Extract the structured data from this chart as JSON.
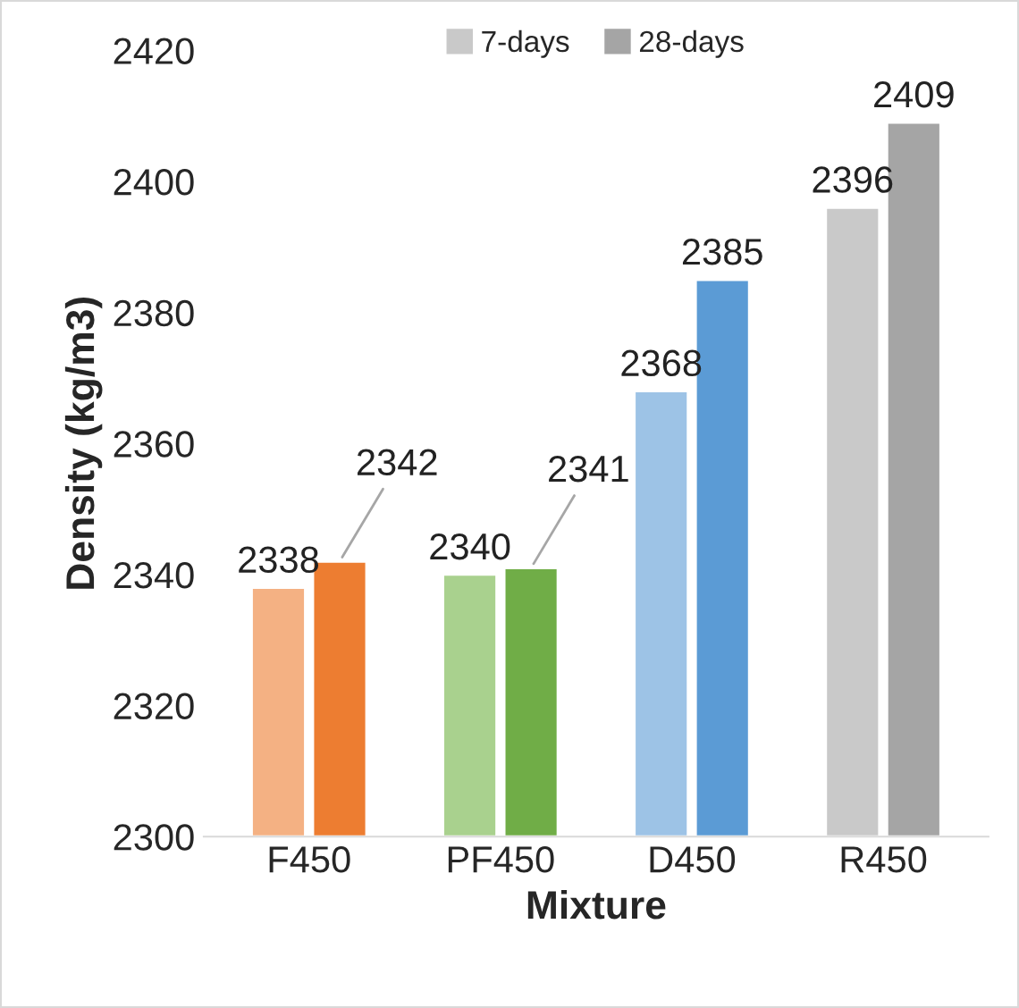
{
  "chart_data": {
    "type": "bar",
    "xlabel": "Mixture",
    "ylabel": "Density (kg/m3)",
    "categories": [
      "F450",
      "PF450",
      "D450",
      "R450"
    ],
    "series": [
      {
        "name": "7-days",
        "color": "#c9c9c9",
        "colors": [
          "#f4b183",
          "#a9d18e",
          "#9dc3e6",
          "#c9c9c9"
        ],
        "values": [
          2338,
          2340,
          2368,
          2396
        ]
      },
      {
        "name": "28-days",
        "color": "#a5a5a5",
        "colors": [
          "#ed7d31",
          "#70ad47",
          "#5b9bd5",
          "#a5a5a5"
        ],
        "values": [
          2342,
          2341,
          2385,
          2409
        ]
      }
    ],
    "ylim": [
      2300,
      2420
    ],
    "yticks": [
      2300,
      2320,
      2340,
      2360,
      2380,
      2400,
      2420
    ],
    "data_labels": true,
    "grid": false,
    "legend": "top"
  }
}
